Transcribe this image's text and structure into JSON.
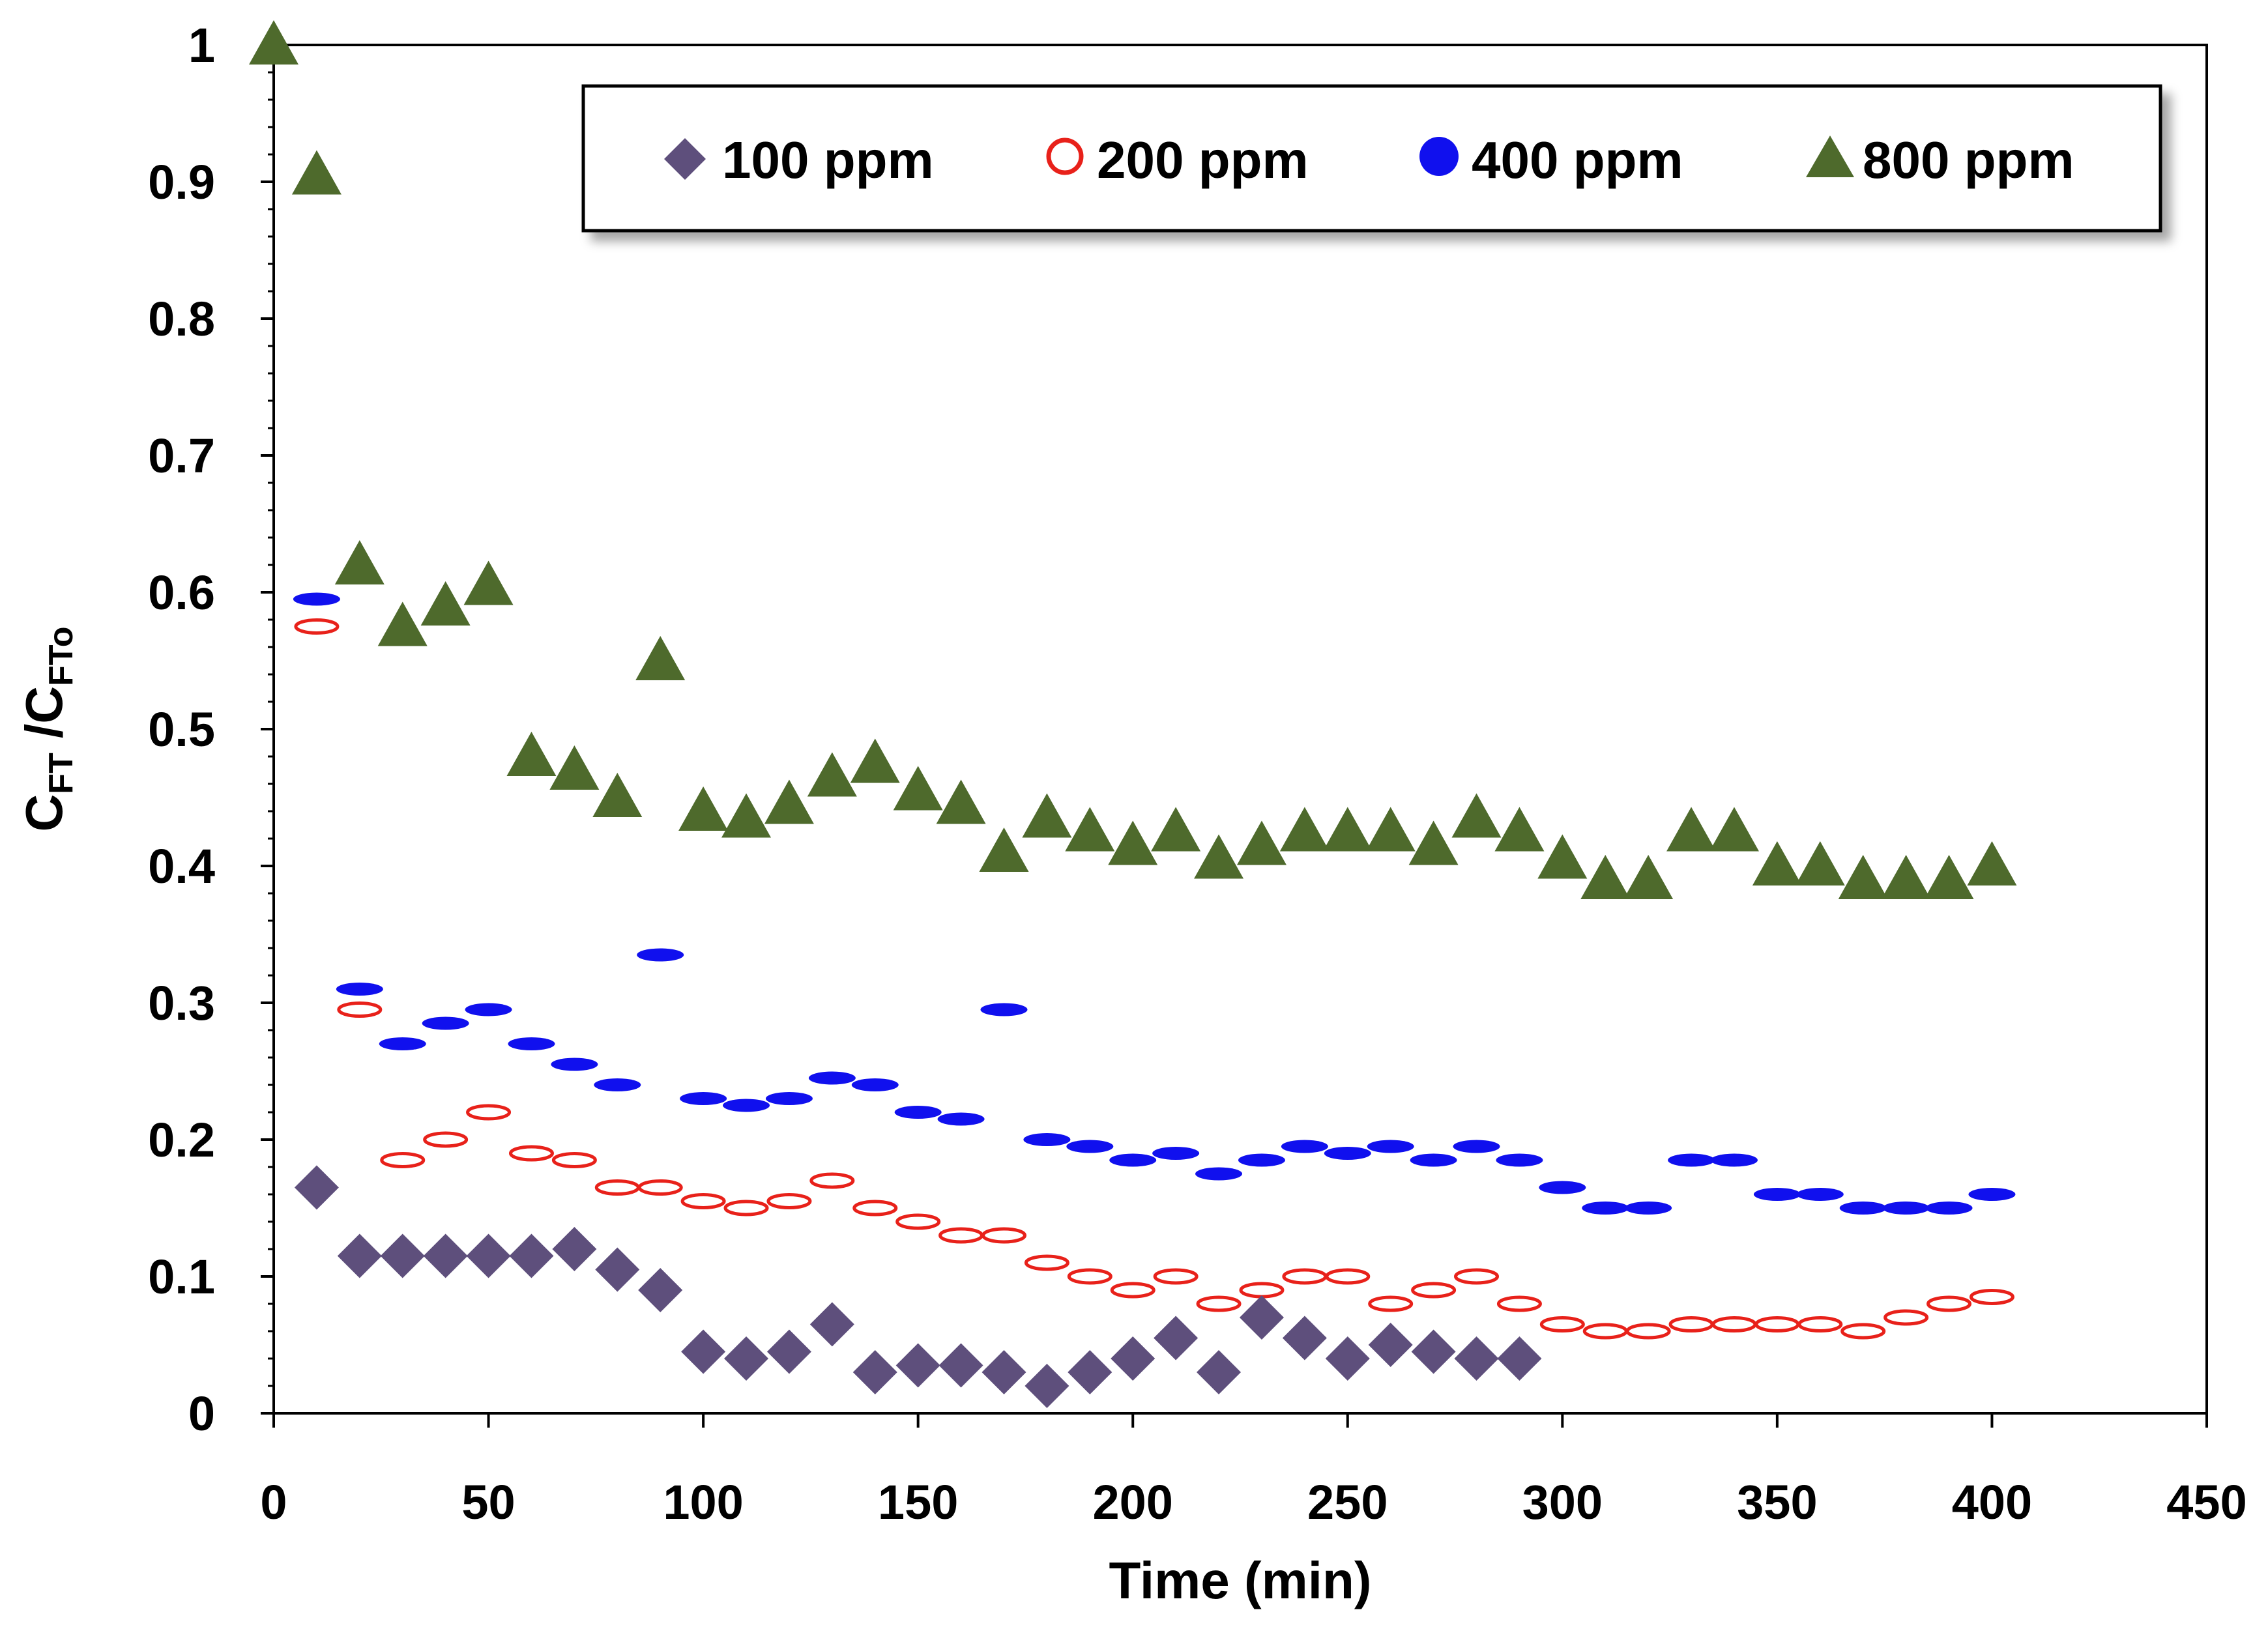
{
  "chart_data": {
    "type": "scatter",
    "title": "",
    "xlabel": "Time (min)",
    "ylabel": {
      "main": "C",
      "sub1": "FT",
      "mid": " /C",
      "sub2": "FTo"
    },
    "xlim": [
      0,
      450
    ],
    "ylim": [
      0,
      1
    ],
    "xticks": [
      0,
      50,
      100,
      150,
      200,
      250,
      300,
      350,
      400,
      450
    ],
    "yticks": [
      0,
      0.1,
      0.2,
      0.3,
      0.4,
      0.5,
      0.6,
      0.7,
      0.8,
      0.9,
      1
    ],
    "xtick_labels": [
      "0",
      "50",
      "100",
      "150",
      "200",
      "250",
      "300",
      "350",
      "400",
      "450"
    ],
    "ytick_labels": [
      "0",
      "0.1",
      "0.2",
      "0.3",
      "0.4",
      "0.5",
      "0.6",
      "0.7",
      "0.8",
      "0.9",
      "1"
    ],
    "legend_position": "top-right",
    "series": [
      {
        "name": "100 ppm",
        "marker": "diamond",
        "color": "#5e4f7c",
        "x": [
          10,
          20,
          30,
          40,
          50,
          60,
          70,
          80,
          90,
          100,
          110,
          120,
          130,
          140,
          150,
          160,
          170,
          180,
          190,
          200,
          210,
          220,
          230,
          240,
          250,
          260,
          270,
          280,
          290
        ],
        "y": [
          0.165,
          0.115,
          0.115,
          0.115,
          0.115,
          0.115,
          0.12,
          0.105,
          0.09,
          0.045,
          0.04,
          0.045,
          0.065,
          0.03,
          0.035,
          0.035,
          0.03,
          0.02,
          0.03,
          0.04,
          0.055,
          0.03,
          0.07,
          0.055,
          0.04,
          0.05,
          0.045,
          0.04,
          0.04
        ]
      },
      {
        "name": "200 ppm",
        "marker": "open-circle",
        "color": "#e8211a",
        "x": [
          10,
          20,
          30,
          40,
          50,
          60,
          70,
          80,
          90,
          100,
          110,
          120,
          130,
          140,
          150,
          160,
          170,
          180,
          190,
          200,
          210,
          220,
          230,
          240,
          250,
          260,
          270,
          280,
          290,
          300,
          310,
          320,
          330,
          340,
          350,
          360,
          370,
          380,
          390,
          400
        ],
        "y": [
          0.575,
          0.295,
          0.185,
          0.2,
          0.22,
          0.19,
          0.185,
          0.165,
          0.165,
          0.155,
          0.15,
          0.155,
          0.17,
          0.15,
          0.14,
          0.13,
          0.13,
          0.11,
          0.1,
          0.09,
          0.1,
          0.08,
          0.09,
          0.1,
          0.1,
          0.08,
          0.09,
          0.1,
          0.08,
          0.065,
          0.06,
          0.06,
          0.065,
          0.065,
          0.065,
          0.065,
          0.06,
          0.07,
          0.08,
          0.085
        ]
      },
      {
        "name": "400 ppm",
        "marker": "filled-circle",
        "color": "#1010ee",
        "x": [
          10,
          20,
          30,
          40,
          50,
          60,
          70,
          80,
          90,
          100,
          110,
          120,
          130,
          140,
          150,
          160,
          170,
          180,
          190,
          200,
          210,
          220,
          230,
          240,
          250,
          260,
          270,
          280,
          290,
          300,
          310,
          320,
          330,
          340,
          350,
          360,
          370,
          380,
          390,
          400
        ],
        "y": [
          0.595,
          0.31,
          0.27,
          0.285,
          0.295,
          0.27,
          0.255,
          0.24,
          0.335,
          0.23,
          0.225,
          0.23,
          0.245,
          0.24,
          0.22,
          0.215,
          0.295,
          0.2,
          0.195,
          0.185,
          0.19,
          0.175,
          0.185,
          0.195,
          0.19,
          0.195,
          0.185,
          0.195,
          0.185,
          0.165,
          0.15,
          0.15,
          0.185,
          0.185,
          0.16,
          0.16,
          0.15,
          0.15,
          0.15,
          0.16
        ]
      },
      {
        "name": "800 ppm",
        "marker": "triangle",
        "color": "#4e6a2c",
        "x": [
          0,
          10,
          20,
          30,
          40,
          50,
          60,
          70,
          80,
          90,
          100,
          110,
          120,
          130,
          140,
          150,
          160,
          170,
          180,
          190,
          200,
          210,
          220,
          230,
          240,
          250,
          260,
          270,
          280,
          290,
          300,
          310,
          320,
          330,
          340,
          350,
          360,
          370,
          380,
          390,
          400
        ],
        "y": [
          1.0,
          0.905,
          0.62,
          0.575,
          0.59,
          0.605,
          0.48,
          0.47,
          0.45,
          0.55,
          0.44,
          0.435,
          0.445,
          0.465,
          0.475,
          0.455,
          0.445,
          0.41,
          0.435,
          0.425,
          0.415,
          0.425,
          0.405,
          0.415,
          0.425,
          0.425,
          0.425,
          0.415,
          0.435,
          0.425,
          0.405,
          0.39,
          0.39,
          0.425,
          0.425,
          0.4,
          0.4,
          0.39,
          0.39,
          0.39,
          0.4
        ]
      }
    ]
  }
}
